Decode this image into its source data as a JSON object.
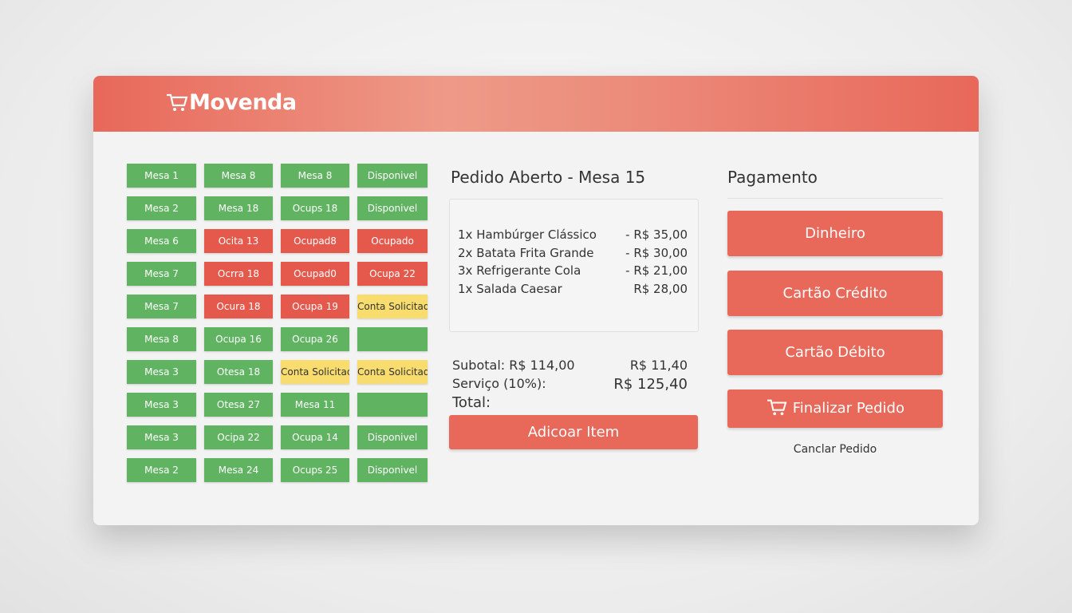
{
  "header": {
    "logo": "Movenda"
  },
  "tables": {
    "rows": [
      [
        {
          "label": "Mesa 1",
          "color": "#5fb361"
        },
        {
          "label": "Mesa 8",
          "color": "#5fb361"
        },
        {
          "label": "Mesa 8",
          "color": "#5fb361"
        },
        {
          "label": "Disponivel",
          "color": "#5fb361"
        }
      ],
      [
        {
          "label": "Mesa 2",
          "color": "#5fb361"
        },
        {
          "label": "Mesa 18",
          "color": "#5fb361"
        },
        {
          "label": "Ocups 18",
          "color": "#5fb361"
        },
        {
          "label": "Disponivel",
          "color": "#5fb361"
        }
      ],
      [
        {
          "label": "Mesa 6",
          "color": "#5fb361"
        },
        {
          "label": "Ocita 13",
          "color": "#e5594d"
        },
        {
          "label": "Ocupad8",
          "color": "#e5594d"
        },
        {
          "label": "Ocupado",
          "color": "#e5594d"
        }
      ],
      [
        {
          "label": "Mesa 7",
          "color": "#5fb361"
        },
        {
          "label": "Ocrra 18",
          "color": "#e5594d"
        },
        {
          "label": "Ocupad0",
          "color": "#e5594d"
        },
        {
          "label": "Ocupa 22",
          "color": "#e5594d"
        }
      ],
      [
        {
          "label": "Mesa 7",
          "color": "#5fb361"
        },
        {
          "label": "Ocura 18",
          "color": "#e5594d"
        },
        {
          "label": "Ocupa 19",
          "color": "#e5594d"
        },
        {
          "label": "Conta Solicitada",
          "color": "#f8dc6e"
        }
      ],
      [
        {
          "label": "Mesa 8",
          "color": "#5fb361"
        },
        {
          "label": "Ocupa 16",
          "color": "#5fb361"
        },
        {
          "label": "Ocupa 26",
          "color": "#5fb361"
        },
        {
          "label": null,
          "color": "#5fb361"
        }
      ],
      [
        {
          "label": "Mesa 3",
          "color": "#5fb361"
        },
        {
          "label": "Otesa 18",
          "color": "#5fb361"
        },
        {
          "label": "Conta Solicitada",
          "color": "#f8dc6e"
        },
        {
          "label": "Conta Solicitada",
          "color": "#f8dc6e"
        }
      ],
      [
        {
          "label": "Mesa 3",
          "color": "#5fb361"
        },
        {
          "label": "Otesa 27",
          "color": "#5fb361"
        },
        {
          "label": "Mesa 11",
          "color": "#5fb361"
        },
        {
          "label": null,
          "color": "#5fb361"
        }
      ],
      [
        {
          "label": "Mesa 3",
          "color": "#5fb361"
        },
        {
          "label": "Ocipa 22",
          "color": "#5fb361"
        },
        {
          "label": "Ocupa 14",
          "color": "#5fb361"
        },
        {
          "label": "Disponivel",
          "color": "#5fb361"
        }
      ],
      [
        {
          "label": "Mesa 2",
          "color": "#5fb361"
        },
        {
          "label": "Mesa 24",
          "color": "#5fb361"
        },
        {
          "label": "Ocups 25",
          "color": "#5fb361"
        },
        {
          "label": "Disponivel",
          "color": "#5fb361"
        }
      ]
    ]
  },
  "order": {
    "title": "Pedido Aberto - Mesa 15",
    "items": [
      {
        "name": "1x Hambúrger Clássico",
        "price": "- R$ 35,00"
      },
      {
        "name": "2x Batata Frita Grande",
        "price": "- R$ 30,00"
      },
      {
        "name": "3x Refrigerante Cola",
        "price": "- R$ 21,00"
      },
      {
        "name": "1x Salada Caesar",
        "price": "R$ 28,00"
      }
    ],
    "totals": [
      {
        "label": "Subotal: R$ 114,00",
        "value": "R$ 11,40"
      },
      {
        "label": "Serviço (10%):",
        "value": "R$ 125,40"
      },
      {
        "label": "Total:"
      }
    ],
    "add_button": "Adicoar Item"
  },
  "payment": {
    "title": "Pagamento",
    "methods": [
      "Dinheiro",
      "Cartão Crédito",
      "Cartão Débito"
    ],
    "finalize": "Finalizar Pedido",
    "cancel": "Canclar Pedido"
  }
}
